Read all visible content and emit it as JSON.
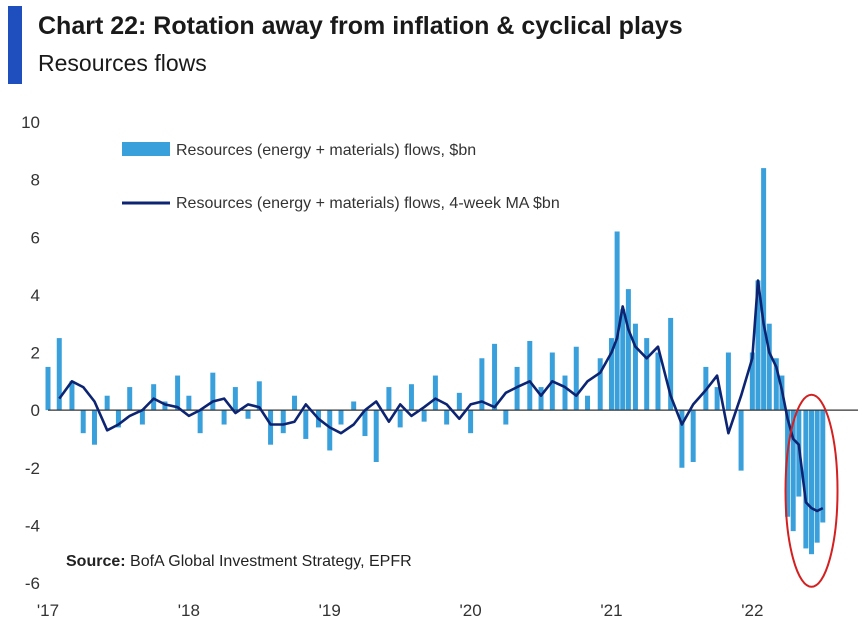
{
  "header": {
    "title": "Chart 22: Rotation away  from inflation & cyclical plays",
    "subtitle": "Resources flows"
  },
  "source": {
    "label": "Source:",
    "text": "BofA Global Investment Strategy, EPFR"
  },
  "colors": {
    "accent": "#1f4fbf",
    "bars": "#3aa0dc",
    "ma_line": "#0d2472",
    "highlight_circle": "#d42020"
  },
  "chart_data": {
    "type": "bar",
    "title": "Chart 22: Rotation away  from inflation & cyclical plays",
    "subtitle": "Resources flows",
    "ylim": [
      -6,
      10
    ],
    "yticks": [
      "10",
      "8",
      "6",
      "4",
      "2",
      "0",
      "-2",
      "-4",
      "-6"
    ],
    "xticks": [
      "'17",
      "'18",
      "'19",
      "'20",
      "'21",
      "'22"
    ],
    "legend": [
      "Resources (energy + materials) flows, $bn",
      "Resources (energy + materials) flows, 4-week MA $bn"
    ],
    "annotations": [
      "red circle around 2022 outflows"
    ],
    "series": [
      {
        "name": "Resources (energy + materials) flows, $bn",
        "kind": "bar",
        "x": [
          2017.0,
          2017.08,
          2017.17,
          2017.25,
          2017.33,
          2017.42,
          2017.5,
          2017.58,
          2017.67,
          2017.75,
          2017.83,
          2017.92,
          2018.0,
          2018.08,
          2018.17,
          2018.25,
          2018.33,
          2018.42,
          2018.5,
          2018.58,
          2018.67,
          2018.75,
          2018.83,
          2018.92,
          2019.0,
          2019.08,
          2019.17,
          2019.25,
          2019.33,
          2019.42,
          2019.5,
          2019.58,
          2019.67,
          2019.75,
          2019.83,
          2019.92,
          2020.0,
          2020.08,
          2020.17,
          2020.25,
          2020.33,
          2020.42,
          2020.5,
          2020.58,
          2020.67,
          2020.75,
          2020.83,
          2020.92,
          2021.0,
          2021.04,
          2021.08,
          2021.12,
          2021.17,
          2021.25,
          2021.33,
          2021.42,
          2021.5,
          2021.58,
          2021.67,
          2021.75,
          2021.83,
          2021.92,
          2022.0,
          2022.04,
          2022.08,
          2022.12,
          2022.17,
          2022.21,
          2022.25,
          2022.29,
          2022.33,
          2022.38,
          2022.42,
          2022.46,
          2022.5
        ],
        "values": [
          1.5,
          2.5,
          1.0,
          -0.8,
          -1.2,
          0.5,
          -0.6,
          0.8,
          -0.5,
          0.9,
          0.3,
          1.2,
          0.5,
          -0.8,
          1.3,
          -0.5,
          0.8,
          -0.3,
          1.0,
          -1.2,
          -0.8,
          0.5,
          -1.0,
          -0.6,
          -1.4,
          -0.5,
          0.3,
          -0.9,
          -1.8,
          0.8,
          -0.6,
          0.9,
          -0.4,
          1.2,
          -0.5,
          0.6,
          -0.8,
          1.8,
          2.3,
          -0.5,
          1.5,
          2.4,
          0.8,
          2.0,
          1.2,
          2.2,
          0.5,
          1.8,
          2.5,
          6.2,
          3.5,
          4.2,
          3.0,
          2.5,
          2.0,
          3.2,
          -2.0,
          -1.8,
          1.5,
          0.8,
          2.0,
          -2.1,
          2.0,
          4.5,
          8.4,
          3.0,
          1.8,
          1.2,
          -3.7,
          -4.2,
          -3.0,
          -4.8,
          -5.0,
          -4.6,
          -3.9
        ],
        "color": "#3aa0dc"
      },
      {
        "name": "Resources (energy + materials) flows, 4-week MA $bn",
        "kind": "line",
        "x": [
          2017.08,
          2017.17,
          2017.25,
          2017.33,
          2017.42,
          2017.5,
          2017.58,
          2017.67,
          2017.75,
          2017.83,
          2017.92,
          2018.0,
          2018.08,
          2018.17,
          2018.25,
          2018.33,
          2018.42,
          2018.5,
          2018.58,
          2018.67,
          2018.75,
          2018.83,
          2018.92,
          2019.0,
          2019.08,
          2019.17,
          2019.25,
          2019.33,
          2019.42,
          2019.5,
          2019.58,
          2019.67,
          2019.75,
          2019.83,
          2019.92,
          2020.0,
          2020.08,
          2020.17,
          2020.25,
          2020.33,
          2020.42,
          2020.5,
          2020.58,
          2020.67,
          2020.75,
          2020.83,
          2020.92,
          2021.0,
          2021.04,
          2021.08,
          2021.12,
          2021.17,
          2021.25,
          2021.33,
          2021.42,
          2021.5,
          2021.58,
          2021.67,
          2021.75,
          2021.83,
          2021.92,
          2022.0,
          2022.04,
          2022.08,
          2022.12,
          2022.17,
          2022.21,
          2022.25,
          2022.29,
          2022.33,
          2022.38,
          2022.42,
          2022.46,
          2022.5
        ],
        "values": [
          0.4,
          1.0,
          0.8,
          0.3,
          -0.7,
          -0.5,
          -0.2,
          0.0,
          0.4,
          0.2,
          0.1,
          -0.2,
          0.0,
          0.3,
          0.4,
          -0.1,
          0.2,
          0.1,
          -0.5,
          -0.5,
          -0.4,
          0.2,
          -0.3,
          -0.6,
          -0.8,
          -0.5,
          0.0,
          0.3,
          -0.4,
          0.2,
          -0.2,
          0.1,
          0.4,
          0.2,
          -0.3,
          0.2,
          0.3,
          0.1,
          0.6,
          0.8,
          1.0,
          0.5,
          1.0,
          0.8,
          0.5,
          1.0,
          1.3,
          2.0,
          2.5,
          3.6,
          2.8,
          2.2,
          1.8,
          2.2,
          0.5,
          -0.5,
          0.2,
          0.7,
          1.2,
          -0.8,
          0.5,
          1.8,
          4.5,
          3.0,
          2.0,
          1.5,
          0.7,
          -0.3,
          -1.0,
          -1.2,
          -3.2,
          -3.4,
          -3.5,
          -3.4
        ],
        "color": "#0d2472"
      }
    ]
  }
}
